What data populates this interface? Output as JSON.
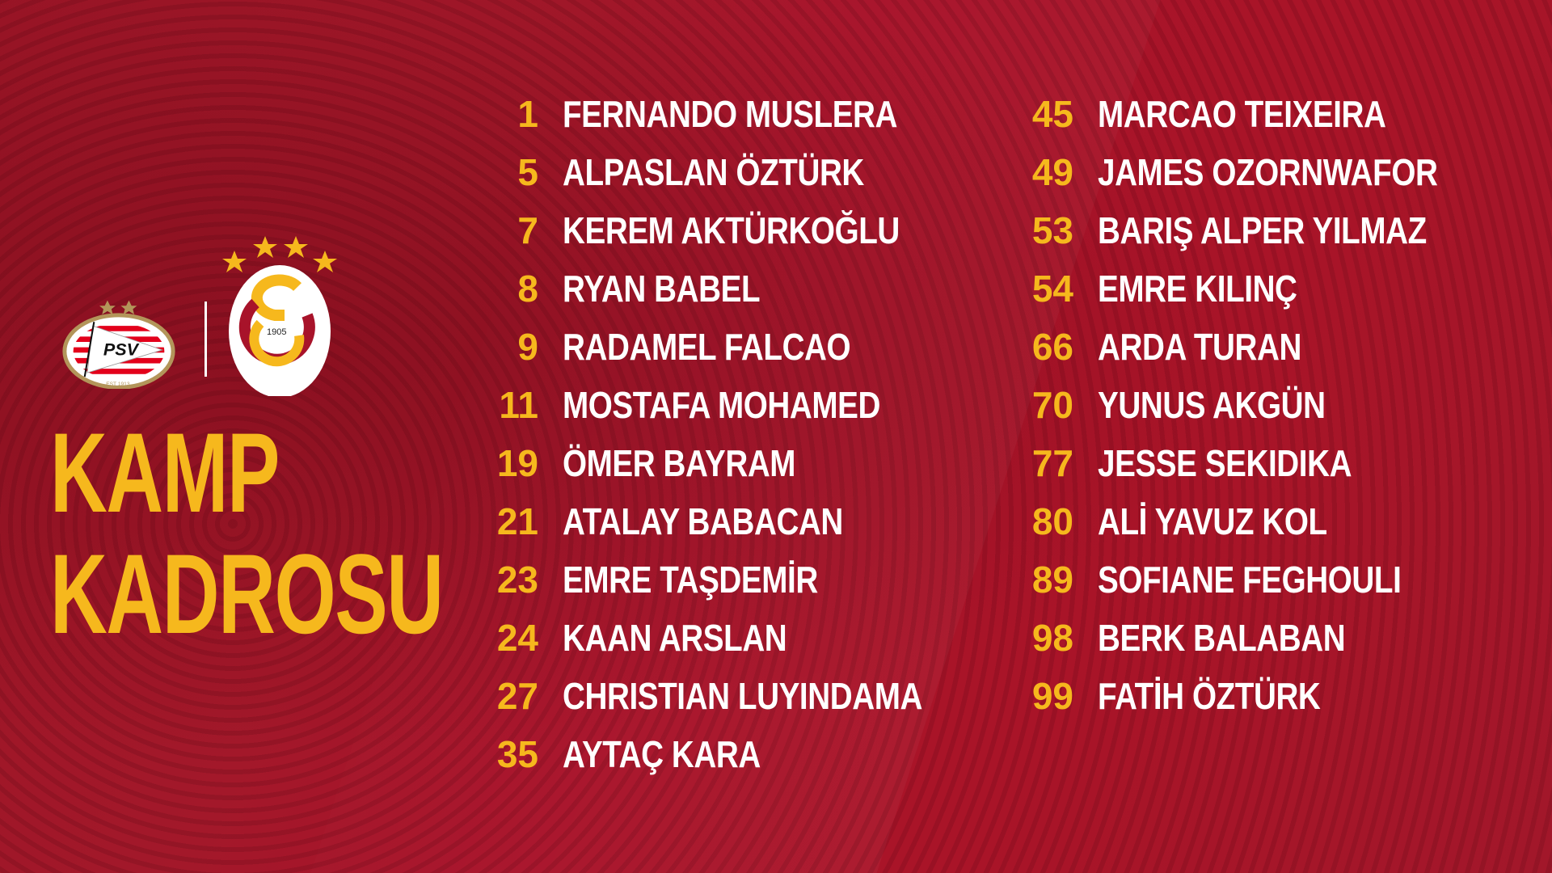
{
  "title": {
    "line1": "KAMP",
    "line2": "KADROSU"
  },
  "logos": {
    "home": "PSV",
    "home_est": "EST 1913",
    "away": "GS",
    "away_year": "1905"
  },
  "colors": {
    "background": "#a8132a",
    "accent": "#f6b81d",
    "text": "#ffffff"
  },
  "squad_left": [
    {
      "number": "1",
      "name": "FERNANDO MUSLERA"
    },
    {
      "number": "5",
      "name": "ALPASLAN ÖZTÜRK"
    },
    {
      "number": "7",
      "name": "KEREM AKTÜRKOĞLU"
    },
    {
      "number": "8",
      "name": "RYAN BABEL"
    },
    {
      "number": "9",
      "name": "RADAMEL FALCAO"
    },
    {
      "number": "11",
      "name": "MOSTAFA MOHAMED"
    },
    {
      "number": "19",
      "name": "ÖMER BAYRAM"
    },
    {
      "number": "21",
      "name": "ATALAY BABACAN"
    },
    {
      "number": "23",
      "name": "EMRE TAŞDEMİR"
    },
    {
      "number": "24",
      "name": "KAAN ARSLAN"
    },
    {
      "number": "27",
      "name": "CHRISTIAN LUYINDAMA"
    },
    {
      "number": "35",
      "name": "AYTAÇ KARA"
    }
  ],
  "squad_right": [
    {
      "number": "45",
      "name": "MARCAO TEIXEIRA"
    },
    {
      "number": "49",
      "name": "JAMES OZORNWAFOR"
    },
    {
      "number": "53",
      "name": "BARIŞ ALPER YILMAZ"
    },
    {
      "number": "54",
      "name": "EMRE KILINÇ"
    },
    {
      "number": "66",
      "name": "ARDA TURAN"
    },
    {
      "number": "70",
      "name": "YUNUS AKGÜN"
    },
    {
      "number": "77",
      "name": "JESSE SEKIDIKA"
    },
    {
      "number": "80",
      "name": "ALİ YAVUZ KOL"
    },
    {
      "number": "89",
      "name": "SOFIANE FEGHOULI"
    },
    {
      "number": "98",
      "name": "BERK BALABAN"
    },
    {
      "number": "99",
      "name": "FATİH ÖZTÜRK"
    }
  ]
}
